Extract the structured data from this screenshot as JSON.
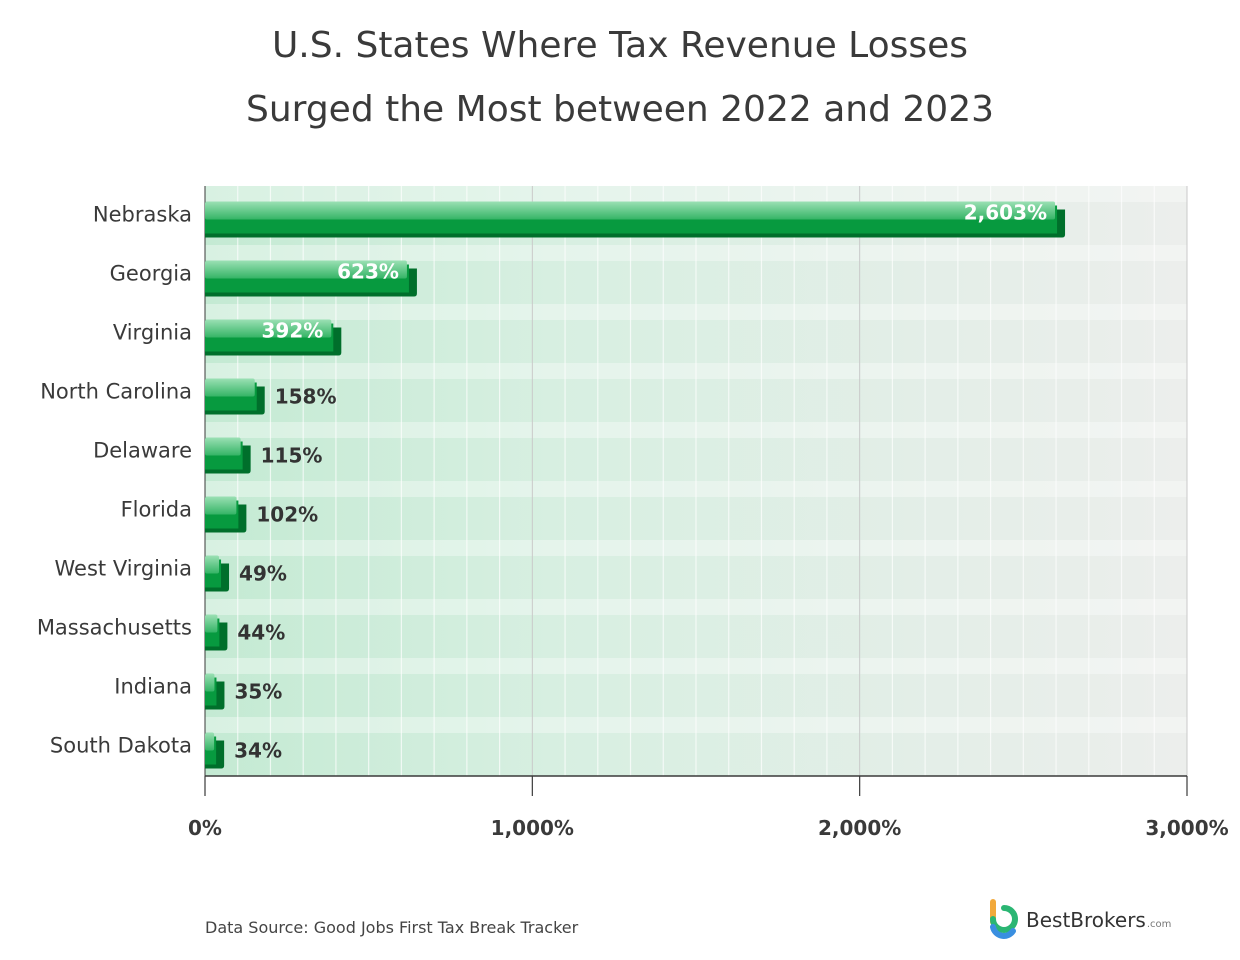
{
  "chart_data": {
    "type": "bar",
    "orientation": "horizontal",
    "title": "U.S. States Where Tax Revenue Losses Surged the Most between 2022 and 2023",
    "title_lines": [
      "U.S. States Where Tax Revenue Losses",
      "Surged the Most between 2022 and 2023"
    ],
    "categories": [
      "Nebraska",
      "Georgia",
      "Virginia",
      "North Carolina",
      "Delaware",
      "Florida",
      "West Virginia",
      "Massachusetts",
      "Indiana",
      "South Dakota"
    ],
    "values": [
      2603,
      623,
      392,
      158,
      115,
      102,
      49,
      44,
      35,
      34
    ],
    "value_labels": [
      "2,603%",
      "623%",
      "392%",
      "158%",
      "115%",
      "102%",
      "49%",
      "44%",
      "35%",
      "34%"
    ],
    "xlim": [
      0,
      3000
    ],
    "x_ticks": [
      0,
      1000,
      2000,
      3000
    ],
    "x_tick_labels": [
      "0%",
      "1,000%",
      "2,000%",
      "3,000%"
    ],
    "xlabel": "",
    "ylabel": "",
    "grid": true
  },
  "footer": {
    "source": "Data Source: Good Jobs First Tax Break Tracker",
    "brand_name": "BestBrokers",
    "brand_domain": ".com",
    "brand_icon": "bestbrokers-logo-icon"
  },
  "colors": {
    "bar_front": "#079a3f",
    "bar_dark": "#006f2b",
    "bar_top_light": "#8fdcac",
    "bar_top_mid": "#3fba6c",
    "grid_major": "#c9c9c9",
    "text": "#333333"
  }
}
